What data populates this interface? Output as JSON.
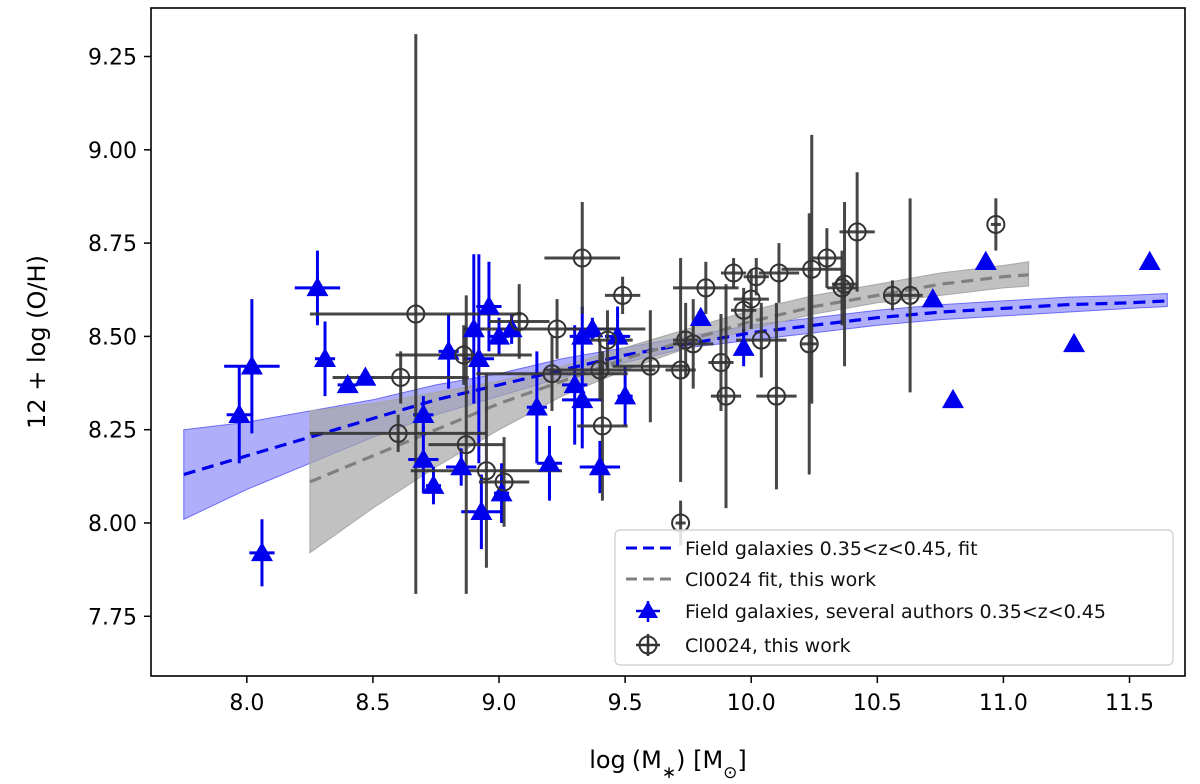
{
  "chart_data": {
    "type": "scatter",
    "xlabel": "log (M_*) [M_⊙]",
    "ylabel": "12 + log (O/H)",
    "xlim": [
      7.62,
      11.72
    ],
    "ylim": [
      7.59,
      9.38
    ],
    "xticks": [
      "8.0",
      "8.5",
      "9.0",
      "9.5",
      "10.0",
      "10.5",
      "11.0",
      "11.5"
    ],
    "yticks": [
      "7.75",
      "8.00",
      "8.25",
      "8.50",
      "8.75",
      "9.00",
      "9.25"
    ],
    "legend_position": "lower-right",
    "colors": {
      "field": "#0000ee",
      "field_band": "#6b6bf5",
      "cluster": "#333333",
      "cluster_fit": "#808080",
      "cluster_band": "#a6a6a6"
    },
    "legend": {
      "field_fit": "Field galaxies 0.35<z<0.45, fit",
      "cluster_fit": "Cl0024 fit, this work",
      "field_points": "Field galaxies, several authors 0.35<z<0.45",
      "cluster_points": "Cl0024, this work"
    },
    "series": [
      {
        "name": "Field galaxies 0.35<z<0.45, fit",
        "kind": "line",
        "x": [
          7.75,
          8.0,
          8.25,
          8.5,
          8.75,
          9.0,
          9.25,
          9.5,
          9.75,
          10.0,
          10.25,
          10.5,
          10.75,
          11.0,
          11.25,
          11.5,
          11.65
        ],
        "y": [
          8.13,
          8.18,
          8.23,
          8.28,
          8.33,
          8.37,
          8.41,
          8.45,
          8.48,
          8.51,
          8.53,
          8.55,
          8.565,
          8.575,
          8.585,
          8.59,
          8.595
        ],
        "band_low": [
          8.01,
          8.09,
          8.16,
          8.23,
          8.29,
          8.34,
          8.39,
          8.43,
          8.47,
          8.49,
          8.51,
          8.53,
          8.545,
          8.555,
          8.565,
          8.575,
          8.58
        ],
        "band_high": [
          8.25,
          8.27,
          8.3,
          8.33,
          8.37,
          8.4,
          8.44,
          8.47,
          8.5,
          8.53,
          8.55,
          8.57,
          8.585,
          8.595,
          8.605,
          8.61,
          8.615
        ]
      },
      {
        "name": "Cl0024 fit, this work",
        "kind": "line",
        "x": [
          8.25,
          8.5,
          8.75,
          9.0,
          9.25,
          9.5,
          9.75,
          10.0,
          10.25,
          10.5,
          10.75,
          11.0,
          11.1
        ],
        "y": [
          8.11,
          8.18,
          8.25,
          8.32,
          8.38,
          8.44,
          8.49,
          8.54,
          8.58,
          8.61,
          8.64,
          8.66,
          8.665
        ],
        "band_low": [
          7.92,
          8.04,
          8.15,
          8.25,
          8.34,
          8.41,
          8.47,
          8.52,
          8.56,
          8.59,
          8.61,
          8.63,
          8.635
        ],
        "band_high": [
          8.3,
          8.32,
          8.35,
          8.38,
          8.42,
          8.47,
          8.52,
          8.57,
          8.61,
          8.64,
          8.67,
          8.69,
          8.7
        ]
      },
      {
        "name": "Field galaxies, several authors 0.35<z<0.45",
        "kind": "points",
        "marker": "triangle",
        "points": [
          {
            "x": 7.97,
            "y": 8.29,
            "xerr": 0.05,
            "yerr": 0.13
          },
          {
            "x": 8.02,
            "y": 8.42,
            "xerr": 0.11,
            "yerr": 0.18
          },
          {
            "x": 8.06,
            "y": 7.92,
            "xerr": 0.05,
            "yerr": 0.09
          },
          {
            "x": 8.28,
            "y": 8.63,
            "xerr": 0.09,
            "yerr": 0.1
          },
          {
            "x": 8.31,
            "y": 8.44,
            "xerr": 0.04,
            "yerr": 0.1
          },
          {
            "x": 8.4,
            "y": 8.37,
            "xerr": 0.04,
            "yerr": 0.02
          },
          {
            "x": 8.47,
            "y": 8.39,
            "xerr": 0.03,
            "yerr": 0.02
          },
          {
            "x": 8.7,
            "y": 8.29,
            "xerr": 0.04,
            "yerr": 0.05
          },
          {
            "x": 8.7,
            "y": 8.17,
            "xerr": 0.06,
            "yerr": 0.09
          },
          {
            "x": 8.74,
            "y": 8.1,
            "xerr": 0.03,
            "yerr": 0.05
          },
          {
            "x": 8.8,
            "y": 8.46,
            "xerr": 0.04,
            "yerr": 0.1
          },
          {
            "x": 8.85,
            "y": 8.15,
            "xerr": 0.06,
            "yerr": 0.05
          },
          {
            "x": 8.9,
            "y": 8.52,
            "xerr": 0.04,
            "yerr": 0.2
          },
          {
            "x": 8.92,
            "y": 8.44,
            "xerr": 0.06,
            "yerr": 0.28
          },
          {
            "x": 8.93,
            "y": 8.03,
            "xerr": 0.08,
            "yerr": 0.1
          },
          {
            "x": 8.96,
            "y": 8.58,
            "xerr": 0.05,
            "yerr": 0.12
          },
          {
            "x": 9.0,
            "y": 8.5,
            "xerr": 0.04,
            "yerr": 0.05
          },
          {
            "x": 9.01,
            "y": 8.08,
            "xerr": 0.03,
            "yerr": 0.08
          },
          {
            "x": 9.05,
            "y": 8.52,
            "xerr": 0.05,
            "yerr": 0.04
          },
          {
            "x": 9.15,
            "y": 8.31,
            "xerr": 0.04,
            "yerr": 0.15
          },
          {
            "x": 9.2,
            "y": 8.16,
            "xerr": 0.05,
            "yerr": 0.1
          },
          {
            "x": 9.3,
            "y": 8.37,
            "xerr": 0.05,
            "yerr": 0.16
          },
          {
            "x": 9.33,
            "y": 8.33,
            "xerr": 0.08,
            "yerr": 0.13
          },
          {
            "x": 9.33,
            "y": 8.5,
            "xerr": 0.05,
            "yerr": 0.08
          },
          {
            "x": 9.37,
            "y": 8.52,
            "xerr": 0.1,
            "yerr": 0.03
          },
          {
            "x": 9.4,
            "y": 8.15,
            "xerr": 0.08,
            "yerr": 0.07
          },
          {
            "x": 9.47,
            "y": 8.5,
            "xerr": 0.05,
            "yerr": 0.08
          },
          {
            "x": 9.5,
            "y": 8.34,
            "xerr": 0.03,
            "yerr": 0.08
          },
          {
            "x": 9.8,
            "y": 8.55,
            "xerr": 0.02,
            "yerr": 0.02
          },
          {
            "x": 9.97,
            "y": 8.47,
            "xerr": 0.02,
            "yerr": 0.05
          },
          {
            "x": 10.72,
            "y": 8.6,
            "xerr": 0,
            "yerr": 0
          },
          {
            "x": 10.8,
            "y": 8.33,
            "xerr": 0,
            "yerr": 0
          },
          {
            "x": 10.93,
            "y": 8.7,
            "xerr": 0,
            "yerr": 0
          },
          {
            "x": 11.28,
            "y": 8.48,
            "xerr": 0,
            "yerr": 0
          },
          {
            "x": 11.58,
            "y": 8.7,
            "xerr": 0,
            "yerr": 0
          }
        ]
      },
      {
        "name": "Cl0024, this work",
        "kind": "points",
        "marker": "circle-plus",
        "points": [
          {
            "x": 8.6,
            "y": 8.24,
            "xerr": 0.35,
            "yerr": 0.05
          },
          {
            "x": 8.61,
            "y": 8.39,
            "xerr": 0.27,
            "yerr": 0.07
          },
          {
            "x": 8.67,
            "y": 8.56,
            "xerr": 0.42,
            "yerr": 0.75
          },
          {
            "x": 8.86,
            "y": 8.45,
            "xerr": 0.27,
            "yerr": 0.08
          },
          {
            "x": 8.87,
            "y": 8.21,
            "xerr": 0.15,
            "yerr": 0.4
          },
          {
            "x": 8.95,
            "y": 8.14,
            "xerr": 0.3,
            "yerr": 0.26
          },
          {
            "x": 9.02,
            "y": 8.11,
            "xerr": 0.1,
            "yerr": 0.12
          },
          {
            "x": 9.08,
            "y": 8.54,
            "xerr": 0.12,
            "yerr": 0.1
          },
          {
            "x": 9.21,
            "y": 8.4,
            "xerr": 0.3,
            "yerr": 0.1
          },
          {
            "x": 9.23,
            "y": 8.52,
            "xerr": 0.35,
            "yerr": 0.08
          },
          {
            "x": 9.33,
            "y": 8.71,
            "xerr": 0.15,
            "yerr": 0.15
          },
          {
            "x": 9.4,
            "y": 8.41,
            "xerr": 0.22,
            "yerr": 0.08
          },
          {
            "x": 9.41,
            "y": 8.26,
            "xerr": 0.1,
            "yerr": 0.2
          },
          {
            "x": 9.43,
            "y": 8.49,
            "xerr": 0.1,
            "yerr": 0.08
          },
          {
            "x": 9.49,
            "y": 8.61,
            "xerr": 0.07,
            "yerr": 0.05
          },
          {
            "x": 9.6,
            "y": 8.42,
            "xerr": 0.15,
            "yerr": 0.15
          },
          {
            "x": 9.72,
            "y": 8.0,
            "xerr": 0.02,
            "yerr": 0.06
          },
          {
            "x": 9.72,
            "y": 8.41,
            "xerr": 0.06,
            "yerr": 0.3
          },
          {
            "x": 9.74,
            "y": 8.49,
            "xerr": 0.05,
            "yerr": 0.1
          },
          {
            "x": 9.77,
            "y": 8.48,
            "xerr": 0.08,
            "yerr": 0.12
          },
          {
            "x": 9.82,
            "y": 8.63,
            "xerr": 0.13,
            "yerr": 0.07
          },
          {
            "x": 9.88,
            "y": 8.43,
            "xerr": 0.05,
            "yerr": 0.13
          },
          {
            "x": 9.9,
            "y": 8.34,
            "xerr": 0.06,
            "yerr": 0.3
          },
          {
            "x": 9.93,
            "y": 8.67,
            "xerr": 0.05,
            "yerr": 0.04
          },
          {
            "x": 9.97,
            "y": 8.57,
            "xerr": 0.05,
            "yerr": 0.06
          },
          {
            "x": 10.0,
            "y": 8.6,
            "xerr": 0.07,
            "yerr": 0.08
          },
          {
            "x": 10.02,
            "y": 8.66,
            "xerr": 0.05,
            "yerr": 0.05
          },
          {
            "x": 10.04,
            "y": 8.49,
            "xerr": 0.1,
            "yerr": 0.1
          },
          {
            "x": 10.1,
            "y": 8.34,
            "xerr": 0.08,
            "yerr": 0.25
          },
          {
            "x": 10.11,
            "y": 8.67,
            "xerr": 0.08,
            "yerr": 0.08
          },
          {
            "x": 10.23,
            "y": 8.48,
            "xerr": 0.03,
            "yerr": 0.35
          },
          {
            "x": 10.24,
            "y": 8.68,
            "xerr": 0.12,
            "yerr": 0.36
          },
          {
            "x": 10.3,
            "y": 8.71,
            "xerr": 0.06,
            "yerr": 0.08
          },
          {
            "x": 10.36,
            "y": 8.63,
            "xerr": 0.06,
            "yerr": 0.1
          },
          {
            "x": 10.37,
            "y": 8.64,
            "xerr": 0.05,
            "yerr": 0.22
          },
          {
            "x": 10.42,
            "y": 8.78,
            "xerr": 0.07,
            "yerr": 0.16
          },
          {
            "x": 10.56,
            "y": 8.61,
            "xerr": 0.03,
            "yerr": 0.04
          },
          {
            "x": 10.63,
            "y": 8.61,
            "xerr": 0.05,
            "yerr": 0.26
          },
          {
            "x": 10.97,
            "y": 8.8,
            "xerr": 0.02,
            "yerr": 0.07
          }
        ]
      }
    ]
  }
}
